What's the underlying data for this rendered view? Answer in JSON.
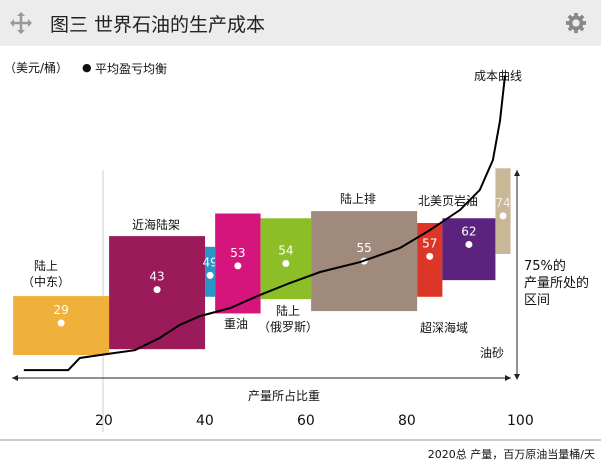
{
  "header": {
    "title": "图三  世界石油的生产成本",
    "move_icon": "move-icon",
    "settings_icon": "gear-icon"
  },
  "chart_data": {
    "type": "bar",
    "title": "世界石油的生产成本",
    "ylabel": "（美元/桶）",
    "legend": "平均盈亏均衡",
    "xlabel": "产量所占比重",
    "x_unit_note": "2020总 产量，百万原油当量桶/天",
    "xticks": [
      20,
      40,
      60,
      80,
      100
    ],
    "xlim": [
      0,
      100
    ],
    "segments": [
      {
        "name": "陆上\n（中东）",
        "label": [
          "陆上",
          "（中东）"
        ],
        "x": [
          3,
          22
        ],
        "y": [
          15.5,
          40.3
        ],
        "avg": 29,
        "color": "#f0b13b"
      },
      {
        "name": "近海陆架",
        "label": [
          "近海陆架"
        ],
        "x": [
          22,
          41
        ],
        "y": [
          18,
          65.5
        ],
        "avg": 43,
        "color": "#9b1a5a"
      },
      {
        "name": "",
        "label": [],
        "x": [
          41,
          43
        ],
        "y": [
          40,
          61
        ],
        "avg": 49,
        "color": "#2a93c8"
      },
      {
        "name": "重油",
        "label": [
          "重油"
        ],
        "x": [
          43,
          52
        ],
        "y": [
          33,
          75
        ],
        "avg": 53,
        "color": "#d6157c"
      },
      {
        "name": "陆上（俄罗斯）",
        "label": [
          "陆上",
          "（俄罗斯）"
        ],
        "x": [
          52,
          62
        ],
        "y": [
          39,
          73
        ],
        "avg": 54,
        "color": "#8cbe28"
      },
      {
        "name": "陆上排",
        "label": [
          "陆上排"
        ],
        "x": [
          62,
          83
        ],
        "y": [
          34,
          76
        ],
        "avg": 55,
        "color": "#a08a7b"
      },
      {
        "name": "超深海域",
        "label": [
          "超深海域"
        ],
        "x": [
          83,
          88
        ],
        "y": [
          40,
          71
        ],
        "avg": 57,
        "color": "#db3628"
      },
      {
        "name": "北美页岩油",
        "label": [
          "北美页岩油"
        ],
        "x": [
          88,
          98.5
        ],
        "y": [
          47,
          73
        ],
        "avg": 62,
        "color": "#5b237d"
      },
      {
        "name": "油砂",
        "label": [
          "油砂"
        ],
        "x": [
          98.5,
          101.5
        ],
        "y": [
          58,
          94
        ],
        "avg": 74,
        "color": "#c8b898"
      }
    ],
    "cost_curve": {
      "name": "成本曲线",
      "points": [
        [
          5.1,
          9.2
        ],
        [
          13.9,
          9.2
        ],
        [
          16.2,
          14.3
        ],
        [
          21.8,
          16
        ],
        [
          27.1,
          17.6
        ],
        [
          32,
          22.7
        ],
        [
          36,
          28.2
        ],
        [
          40,
          31.9
        ],
        [
          46,
          35.3
        ],
        [
          51.9,
          40.8
        ],
        [
          57.8,
          45.8
        ],
        [
          63.8,
          50.4
        ],
        [
          71.7,
          54.6
        ],
        [
          79.6,
          60.5
        ],
        [
          85.5,
          68
        ],
        [
          91.5,
          76.5
        ],
        [
          95.4,
          84.9
        ],
        [
          98,
          97.5
        ],
        [
          99.4,
          114
        ],
        [
          100.4,
          133
        ]
      ]
    },
    "annotation": [
      "75%的",
      "产量所处的",
      "区间"
    ]
  }
}
